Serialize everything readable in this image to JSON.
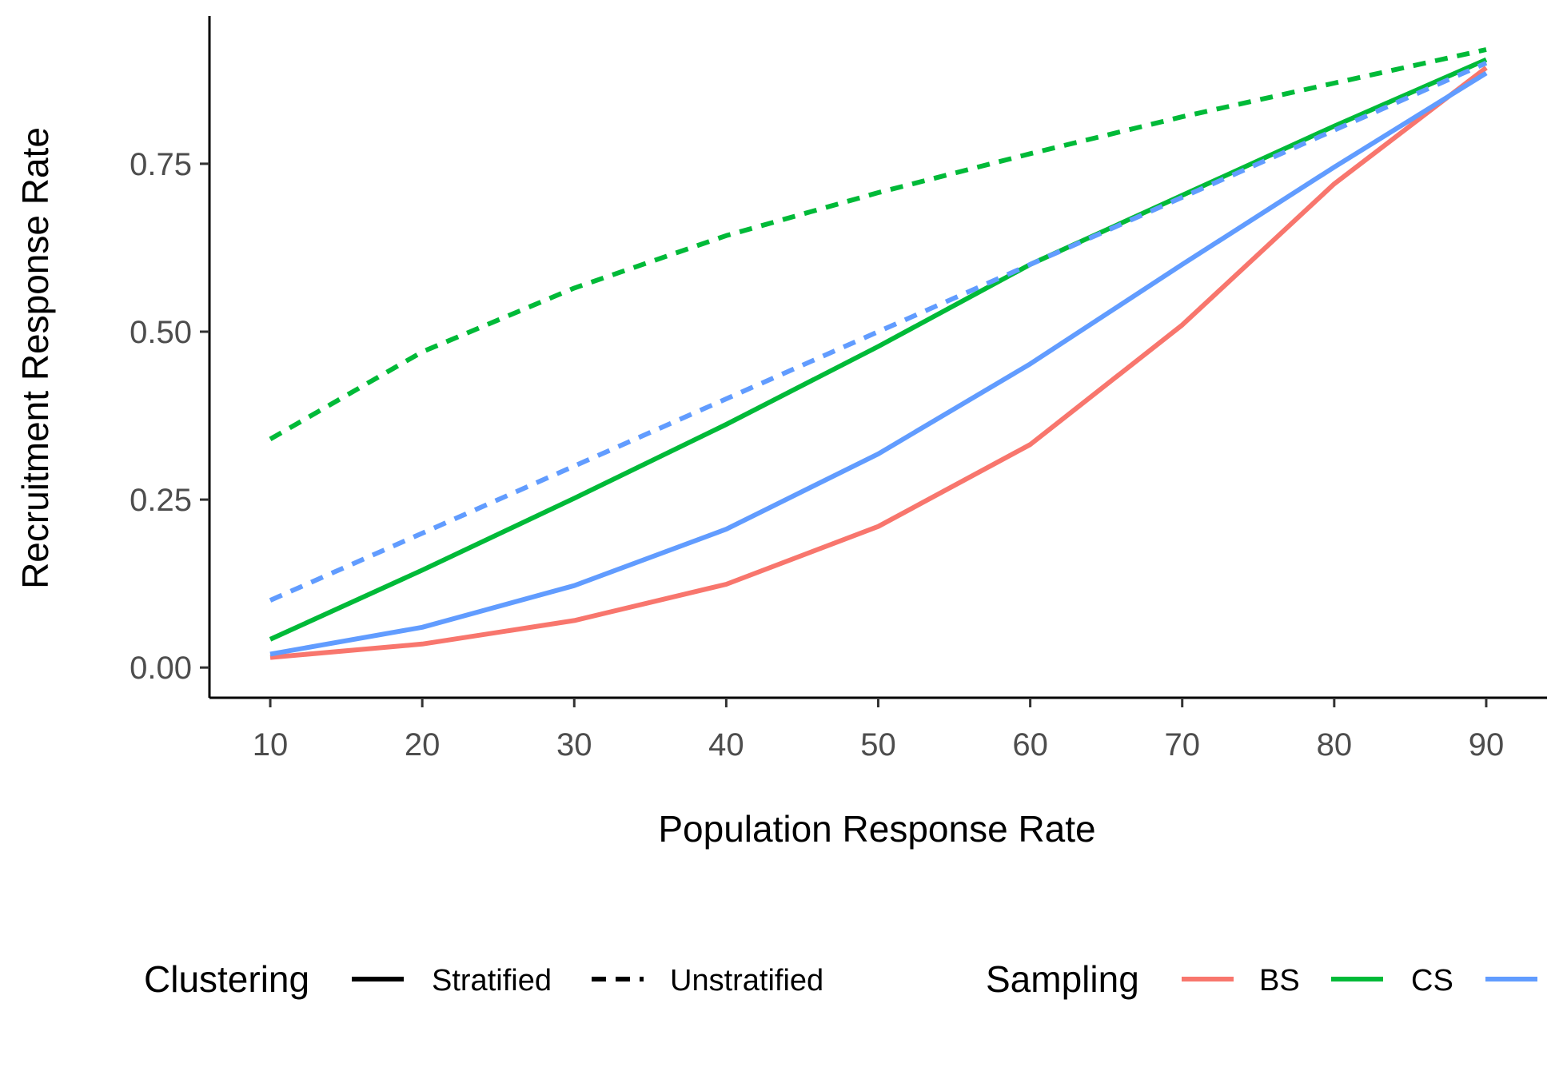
{
  "chart_data": {
    "type": "line",
    "xlabel": "Population Response Rate",
    "ylabel": "Recruitment Response Rate",
    "xlim": [
      6,
      94
    ],
    "ylim": [
      -0.045,
      0.97
    ],
    "x_ticks": [
      10,
      20,
      30,
      40,
      50,
      60,
      70,
      80,
      90
    ],
    "x_tick_labels": [
      "10",
      "20",
      "30",
      "40",
      "50",
      "60",
      "70",
      "80",
      "90"
    ],
    "y_ticks": [
      0,
      0.25,
      0.5,
      0.75
    ],
    "y_tick_labels": [
      "0.00",
      "0.25",
      "0.50",
      "0.75"
    ],
    "grid": false,
    "legend_position": "bottom",
    "x": [
      10,
      20,
      30,
      40,
      50,
      60,
      70,
      80,
      90
    ],
    "series": [
      {
        "name": "BS",
        "clustering": "Stratified",
        "color": "#F8766D",
        "dash": "solid",
        "values": [
          0.015,
          0.035,
          0.07,
          0.124,
          0.21,
          0.332,
          0.51,
          0.72,
          0.893
        ]
      },
      {
        "name": "CS",
        "clustering": "Stratified",
        "color": "#00BA38",
        "dash": "solid",
        "values": [
          0.042,
          0.145,
          0.252,
          0.362,
          0.478,
          0.6,
          0.703,
          0.806,
          0.905
        ]
      },
      {
        "name": "",
        "clustering": "Stratified",
        "color": "#619CFF",
        "dash": "solid",
        "values": [
          0.02,
          0.06,
          0.122,
          0.206,
          0.318,
          0.452,
          0.6,
          0.745,
          0.885
        ]
      },
      {
        "name": "CS",
        "clustering": "Unstratified",
        "color": "#00BA38",
        "dash": "dashed",
        "values": [
          0.34,
          0.47,
          0.565,
          0.643,
          0.707,
          0.765,
          0.82,
          0.87,
          0.92
        ]
      },
      {
        "name": "",
        "clustering": "Unstratified",
        "color": "#619CFF",
        "dash": "dashed",
        "values": [
          0.1,
          0.2,
          0.3,
          0.4,
          0.5,
          0.6,
          0.7,
          0.8,
          0.9
        ]
      }
    ]
  },
  "legend": {
    "clustering": {
      "title": "Clustering",
      "items": [
        {
          "label": "Stratified",
          "dash": "solid"
        },
        {
          "label": "Unstratified",
          "dash": "dashed"
        }
      ]
    },
    "sampling": {
      "title": "Sampling",
      "items": [
        {
          "label": "BS",
          "color": "#F8766D"
        },
        {
          "label": "CS",
          "color": "#00BA38"
        },
        {
          "label": "",
          "color": "#619CFF"
        }
      ]
    }
  }
}
